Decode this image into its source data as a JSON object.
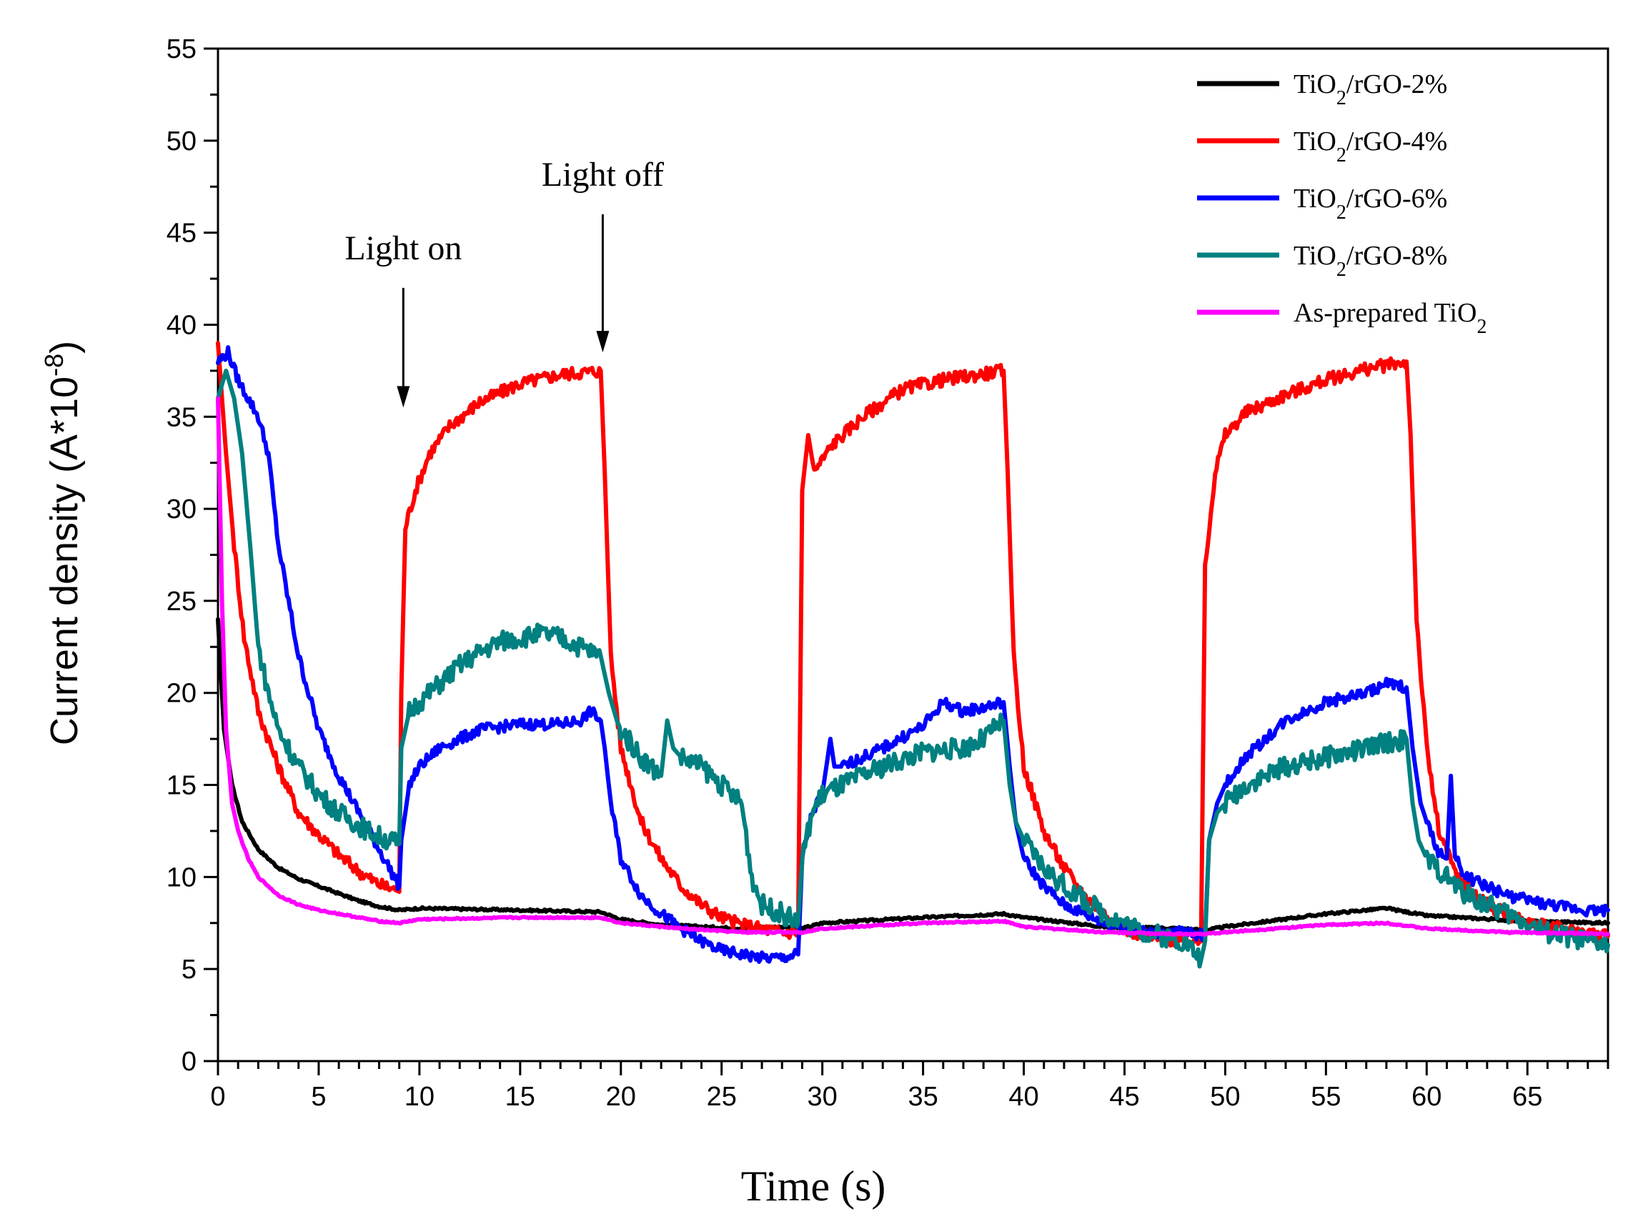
{
  "chart_data": {
    "type": "line",
    "title": "",
    "xlabel": "Time (s)",
    "ylabel": "Current density (A*10",
    "ylabel_sup": "-8",
    "ylabel_close": ")",
    "xlim": [
      0,
      69
    ],
    "ylim": [
      0,
      55
    ],
    "xticks": [
      0,
      5,
      10,
      15,
      20,
      25,
      30,
      35,
      40,
      45,
      50,
      55,
      60,
      65
    ],
    "yticks": [
      0,
      5,
      10,
      15,
      20,
      25,
      30,
      35,
      40,
      45,
      50,
      55
    ],
    "grid": false,
    "legend_position": "top-right",
    "annotations": [
      {
        "text": "Light on",
        "x": 9.2,
        "y_tip": 35.5,
        "y_tail": 42
      },
      {
        "text": "Light off",
        "x": 19.1,
        "y_tip": 38.5,
        "y_tail": 46
      }
    ],
    "series": [
      {
        "name": "TiO2/rGO-2%",
        "label_main": "TiO",
        "label_sub": "2",
        "label_rest": "/rGO-2%",
        "color": "#000000",
        "points": [
          [
            0,
            24
          ],
          [
            0.3,
            18
          ],
          [
            0.7,
            15
          ],
          [
            1.2,
            13
          ],
          [
            2,
            11.5
          ],
          [
            3,
            10.5
          ],
          [
            4,
            9.9
          ],
          [
            5,
            9.5
          ],
          [
            6,
            9.1
          ],
          [
            7,
            8.7
          ],
          [
            8,
            8.4
          ],
          [
            9,
            8.2
          ],
          [
            10,
            8.3
          ],
          [
            15,
            8.2
          ],
          [
            19,
            8.1
          ],
          [
            20,
            7.7
          ],
          [
            22,
            7.4
          ],
          [
            24,
            7.3
          ],
          [
            26,
            7.2
          ],
          [
            28,
            7.3
          ],
          [
            29,
            7.2
          ],
          [
            30,
            7.5
          ],
          [
            35,
            7.8
          ],
          [
            39,
            8.0
          ],
          [
            40,
            7.8
          ],
          [
            44,
            7.3
          ],
          [
            48,
            7.2
          ],
          [
            49,
            7.1
          ],
          [
            50,
            7.3
          ],
          [
            55,
            8.0
          ],
          [
            58,
            8.3
          ],
          [
            60,
            7.9
          ],
          [
            65,
            7.6
          ],
          [
            69,
            7.5
          ]
        ]
      },
      {
        "name": "TiO2/rGO-4%",
        "label_main": "TiO",
        "label_sub": "2",
        "label_rest": "/rGO-4%",
        "color": "#ff0000",
        "points": [
          [
            0,
            39
          ],
          [
            0.4,
            33
          ],
          [
            0.8,
            28
          ],
          [
            1.3,
            23
          ],
          [
            2,
            19
          ],
          [
            3,
            16
          ],
          [
            4,
            13.5
          ],
          [
            5,
            12.3
          ],
          [
            6,
            11.2
          ],
          [
            7,
            10.3
          ],
          [
            8,
            9.6
          ],
          [
            8.8,
            9.3
          ],
          [
            9.0,
            9.2
          ],
          [
            9.1,
            20
          ],
          [
            9.3,
            29
          ],
          [
            9.8,
            31
          ],
          [
            10.5,
            33
          ],
          [
            11.5,
            34.5
          ],
          [
            13,
            35.8
          ],
          [
            15,
            36.8
          ],
          [
            17,
            37.3
          ],
          [
            19,
            37.5
          ],
          [
            19.2,
            32
          ],
          [
            19.5,
            22
          ],
          [
            20,
            17
          ],
          [
            21,
            13
          ],
          [
            22,
            11
          ],
          [
            23,
            9.5
          ],
          [
            24,
            8.5
          ],
          [
            25,
            7.8
          ],
          [
            26,
            7.4
          ],
          [
            27,
            7.2
          ],
          [
            28,
            7.0
          ],
          [
            28.8,
            7.0
          ],
          [
            29,
            31
          ],
          [
            29.3,
            34
          ],
          [
            29.6,
            32
          ],
          [
            30.5,
            33.5
          ],
          [
            32,
            35
          ],
          [
            34,
            36.5
          ],
          [
            36,
            37
          ],
          [
            39,
            37.5
          ],
          [
            39.2,
            32
          ],
          [
            39.5,
            22
          ],
          [
            40,
            16
          ],
          [
            41,
            12.5
          ],
          [
            42,
            10.5
          ],
          [
            43,
            9
          ],
          [
            44,
            8
          ],
          [
            45,
            7.2
          ],
          [
            46,
            6.8
          ],
          [
            47,
            6.6
          ],
          [
            48,
            6.5
          ],
          [
            48.8,
            6.5
          ],
          [
            49,
            27
          ],
          [
            49.5,
            32
          ],
          [
            50,
            34
          ],
          [
            51,
            35.2
          ],
          [
            53,
            36.2
          ],
          [
            55,
            37
          ],
          [
            57,
            37.6
          ],
          [
            59,
            38
          ],
          [
            59.2,
            34
          ],
          [
            59.5,
            24
          ],
          [
            60,
            17
          ],
          [
            60.6,
            12.5
          ],
          [
            61.5,
            10
          ],
          [
            63,
            8.5
          ],
          [
            65,
            7.5
          ],
          [
            67,
            7.1
          ],
          [
            69,
            6.8
          ]
        ]
      },
      {
        "name": "TiO2/rGO-6%",
        "label_main": "TiO",
        "label_sub": "2",
        "label_rest": "/rGO-6%",
        "color": "#0000ff",
        "points": [
          [
            0,
            38
          ],
          [
            0.5,
            38.5
          ],
          [
            1,
            37
          ],
          [
            2,
            35
          ],
          [
            2.5,
            33
          ],
          [
            3,
            28
          ],
          [
            3.5,
            25
          ],
          [
            4,
            22
          ],
          [
            5,
            18
          ],
          [
            6,
            15.5
          ],
          [
            7,
            13.5
          ],
          [
            8,
            11.5
          ],
          [
            9,
            9.5
          ],
          [
            9.1,
            12
          ],
          [
            9.5,
            15
          ],
          [
            10,
            16
          ],
          [
            11,
            17
          ],
          [
            13,
            18
          ],
          [
            15,
            18.3
          ],
          [
            17,
            18.3
          ],
          [
            18,
            18.5
          ],
          [
            18.5,
            19
          ],
          [
            19,
            18.5
          ],
          [
            19.2,
            17
          ],
          [
            19.5,
            14
          ],
          [
            20,
            11
          ],
          [
            21,
            9
          ],
          [
            22,
            8
          ],
          [
            23,
            7.2
          ],
          [
            24,
            6.5
          ],
          [
            25,
            6.0
          ],
          [
            26,
            5.8
          ],
          [
            27,
            5.6
          ],
          [
            28,
            5.6
          ],
          [
            28.8,
            5.8
          ],
          [
            29,
            11
          ],
          [
            29.5,
            13.5
          ],
          [
            30,
            14.5
          ],
          [
            30.4,
            17.5
          ],
          [
            30.6,
            16
          ],
          [
            31,
            16
          ],
          [
            33,
            17
          ],
          [
            35,
            18.2
          ],
          [
            36,
            19.5
          ],
          [
            37,
            19
          ],
          [
            38,
            19.2
          ],
          [
            39,
            19.5
          ],
          [
            39.3,
            16
          ],
          [
            39.6,
            13
          ],
          [
            40,
            11
          ],
          [
            41,
            9.5
          ],
          [
            42,
            8.5
          ],
          [
            44,
            7.5
          ],
          [
            46,
            7.0
          ],
          [
            48,
            7.0
          ],
          [
            49,
            6.8
          ],
          [
            49.2,
            12
          ],
          [
            49.6,
            14
          ],
          [
            50,
            15
          ],
          [
            51,
            16.5
          ],
          [
            53,
            18.5
          ],
          [
            55,
            19.5
          ],
          [
            57,
            20
          ],
          [
            58,
            20.5
          ],
          [
            59,
            20.3
          ],
          [
            59.3,
            17
          ],
          [
            59.7,
            14
          ],
          [
            60,
            13
          ],
          [
            60.5,
            11.5
          ],
          [
            61,
            11
          ],
          [
            61.2,
            15.5
          ],
          [
            61.4,
            11
          ],
          [
            62,
            10
          ],
          [
            64,
            9
          ],
          [
            66,
            8.5
          ],
          [
            68,
            8.2
          ],
          [
            69,
            8.2
          ]
        ]
      },
      {
        "name": "TiO2/rGO-8%",
        "label_main": "TiO",
        "label_sub": "2",
        "label_rest": "/rGO-8%",
        "color": "#008080",
        "points": [
          [
            0,
            36
          ],
          [
            0.4,
            37.5
          ],
          [
            0.8,
            36
          ],
          [
            1.2,
            33
          ],
          [
            1.6,
            28
          ],
          [
            2,
            22.5
          ],
          [
            2.5,
            20
          ],
          [
            3,
            18
          ],
          [
            4,
            16
          ],
          [
            5,
            14.5
          ],
          [
            6,
            13.5
          ],
          [
            7,
            12.8
          ],
          [
            8,
            12.2
          ],
          [
            9,
            11.8
          ],
          [
            9.1,
            17
          ],
          [
            9.5,
            19
          ],
          [
            10,
            19.5
          ],
          [
            11,
            20.5
          ],
          [
            12,
            21.5
          ],
          [
            13,
            22.2
          ],
          [
            14,
            22.8
          ],
          [
            15,
            23
          ],
          [
            16,
            23.2
          ],
          [
            17,
            23
          ],
          [
            18,
            22.5
          ],
          [
            19,
            22
          ],
          [
            19.4,
            20
          ],
          [
            19.8,
            18.5
          ],
          [
            20,
            18
          ],
          [
            21,
            16.5
          ],
          [
            22,
            15.5
          ],
          [
            22.3,
            18.5
          ],
          [
            22.6,
            17
          ],
          [
            23,
            16.5
          ],
          [
            24,
            16
          ],
          [
            25,
            15
          ],
          [
            26,
            14
          ],
          [
            26.5,
            10
          ],
          [
            27,
            8.5
          ],
          [
            28,
            8
          ],
          [
            28.8,
            7.5
          ],
          [
            29,
            11
          ],
          [
            29.5,
            13.5
          ],
          [
            30,
            14.5
          ],
          [
            31,
            15
          ],
          [
            33,
            16
          ],
          [
            35,
            16.8
          ],
          [
            37,
            17
          ],
          [
            38,
            17.5
          ],
          [
            39,
            18.5
          ],
          [
            39.3,
            15
          ],
          [
            39.6,
            13
          ],
          [
            40,
            12
          ],
          [
            41,
            10.5
          ],
          [
            42,
            9.5
          ],
          [
            44,
            8
          ],
          [
            46,
            7.0
          ],
          [
            48,
            6.5
          ],
          [
            48.8,
            5.5
          ],
          [
            49,
            6.5
          ],
          [
            49.2,
            12
          ],
          [
            49.6,
            13.5
          ],
          [
            50,
            14
          ],
          [
            51,
            15
          ],
          [
            53,
            16
          ],
          [
            55,
            16.5
          ],
          [
            57,
            17
          ],
          [
            58,
            17.3
          ],
          [
            59,
            17.5
          ],
          [
            59.3,
            14
          ],
          [
            59.6,
            12
          ],
          [
            60,
            11
          ],
          [
            61,
            10
          ],
          [
            62,
            9
          ],
          [
            64,
            8
          ],
          [
            66,
            7
          ],
          [
            68,
            6.5
          ],
          [
            69,
            6.3
          ]
        ]
      },
      {
        "name": "As-prepared TiO2",
        "label_main": "As-prepared TiO",
        "label_sub": "2",
        "label_rest": "",
        "color": "#ff00ff",
        "points": [
          [
            0,
            36
          ],
          [
            0.2,
            25
          ],
          [
            0.4,
            18
          ],
          [
            0.7,
            14
          ],
          [
            1,
            12.5
          ],
          [
            1.5,
            11
          ],
          [
            2,
            10
          ],
          [
            3,
            9.0
          ],
          [
            4,
            8.5
          ],
          [
            5,
            8.2
          ],
          [
            6,
            8.0
          ],
          [
            7,
            7.8
          ],
          [
            8,
            7.6
          ],
          [
            9,
            7.5
          ],
          [
            10,
            7.7
          ],
          [
            15,
            7.8
          ],
          [
            19,
            7.8
          ],
          [
            20,
            7.5
          ],
          [
            23,
            7.2
          ],
          [
            26,
            7.0
          ],
          [
            29,
            7.0
          ],
          [
            30,
            7.2
          ],
          [
            35,
            7.5
          ],
          [
            39,
            7.6
          ],
          [
            40,
            7.3
          ],
          [
            44,
            7.0
          ],
          [
            48,
            6.9
          ],
          [
            49,
            6.9
          ],
          [
            50,
            7.0
          ],
          [
            55,
            7.4
          ],
          [
            58,
            7.5
          ],
          [
            60,
            7.2
          ],
          [
            64,
            7.0
          ],
          [
            69,
            6.9
          ]
        ]
      }
    ]
  }
}
